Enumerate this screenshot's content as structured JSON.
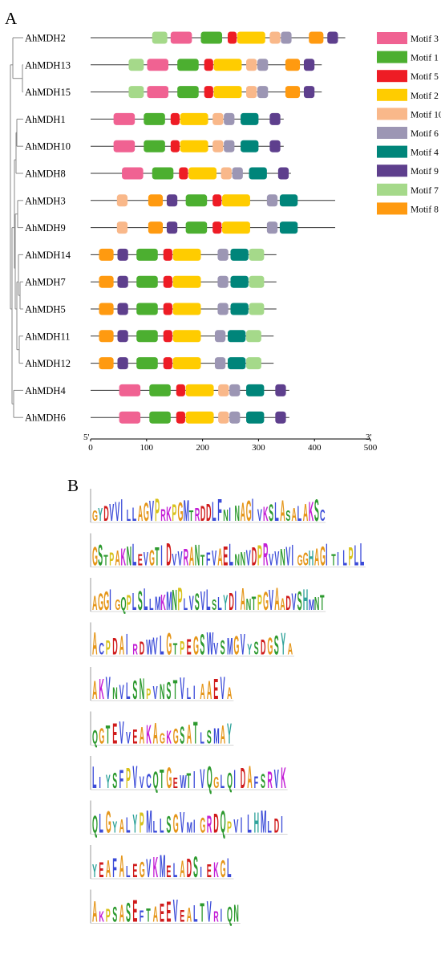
{
  "panels": {
    "a_label": "A",
    "b_label": "B"
  },
  "axis": {
    "end5": "5'",
    "end3": "3'",
    "ticks": [
      0,
      100,
      200,
      300,
      400,
      500
    ],
    "range": [
      0,
      500
    ]
  },
  "motif_legend": [
    {
      "id": 3,
      "name": "Motif 3",
      "color": "#f06292"
    },
    {
      "id": 1,
      "name": "Motif 1",
      "color": "#4caf30"
    },
    {
      "id": 5,
      "name": "Motif 5",
      "color": "#ee1c25"
    },
    {
      "id": 2,
      "name": "Motif 2",
      "color": "#ffcc00"
    },
    {
      "id": 10,
      "name": "Motif 10",
      "color": "#f9b88a"
    },
    {
      "id": 6,
      "name": "Motif 6",
      "color": "#9c96b4"
    },
    {
      "id": 4,
      "name": "Motif 4",
      "color": "#00857a"
    },
    {
      "id": 9,
      "name": "Motif 9",
      "color": "#5e3f8d"
    },
    {
      "id": 7,
      "name": "Motif 7",
      "color": "#a5d98a"
    },
    {
      "id": 8,
      "name": "Motif 8",
      "color": "#ff9a10"
    }
  ],
  "genes": [
    {
      "name": "AhMDH2",
      "length": 455,
      "motifs": [
        [
          7,
          110
        ],
        [
          3,
          143
        ],
        [
          1,
          197
        ],
        [
          5,
          245
        ],
        [
          2,
          262
        ],
        [
          10,
          320
        ],
        [
          6,
          340
        ],
        [
          8,
          390
        ],
        [
          9,
          423
        ]
      ]
    },
    {
      "name": "AhMDH13",
      "length": 413,
      "motifs": [
        [
          7,
          68
        ],
        [
          3,
          101
        ],
        [
          1,
          155
        ],
        [
          5,
          203
        ],
        [
          2,
          220
        ],
        [
          10,
          278
        ],
        [
          6,
          298
        ],
        [
          8,
          348
        ],
        [
          9,
          381
        ]
      ]
    },
    {
      "name": "AhMDH15",
      "length": 413,
      "motifs": [
        [
          7,
          68
        ],
        [
          3,
          101
        ],
        [
          1,
          155
        ],
        [
          5,
          203
        ],
        [
          2,
          220
        ],
        [
          10,
          278
        ],
        [
          6,
          298
        ],
        [
          8,
          348
        ],
        [
          9,
          381
        ]
      ]
    },
    {
      "name": "AhMDH1",
      "length": 345,
      "motifs": [
        [
          3,
          41
        ],
        [
          1,
          95
        ],
        [
          5,
          143
        ],
        [
          2,
          160
        ],
        [
          10,
          218
        ],
        [
          6,
          238
        ],
        [
          4,
          268
        ],
        [
          9,
          320
        ]
      ]
    },
    {
      "name": "AhMDH10",
      "length": 345,
      "motifs": [
        [
          3,
          41
        ],
        [
          1,
          95
        ],
        [
          5,
          143
        ],
        [
          2,
          160
        ],
        [
          10,
          218
        ],
        [
          6,
          238
        ],
        [
          4,
          268
        ],
        [
          9,
          320
        ]
      ]
    },
    {
      "name": "AhMDH8",
      "length": 358,
      "motifs": [
        [
          3,
          56
        ],
        [
          1,
          110
        ],
        [
          5,
          158
        ],
        [
          2,
          175
        ],
        [
          10,
          233
        ],
        [
          6,
          253
        ],
        [
          4,
          283
        ],
        [
          9,
          335
        ]
      ]
    },
    {
      "name": "AhMDH3",
      "length": 437,
      "motifs": [
        [
          10,
          47
        ],
        [
          8,
          103
        ],
        [
          9,
          136
        ],
        [
          1,
          170
        ],
        [
          5,
          218
        ],
        [
          2,
          235
        ],
        [
          6,
          315
        ],
        [
          4,
          338
        ]
      ]
    },
    {
      "name": "AhMDH9",
      "length": 437,
      "motifs": [
        [
          10,
          47
        ],
        [
          8,
          103
        ],
        [
          9,
          136
        ],
        [
          1,
          170
        ],
        [
          5,
          218
        ],
        [
          2,
          235
        ],
        [
          6,
          315
        ],
        [
          4,
          338
        ]
      ]
    },
    {
      "name": "AhMDH14",
      "length": 332,
      "motifs": [
        [
          8,
          15
        ],
        [
          9,
          48
        ],
        [
          1,
          82
        ],
        [
          5,
          130
        ],
        [
          2,
          147
        ],
        [
          6,
          227
        ],
        [
          4,
          250
        ],
        [
          7,
          283
        ]
      ]
    },
    {
      "name": "AhMDH7",
      "length": 332,
      "motifs": [
        [
          8,
          15
        ],
        [
          9,
          48
        ],
        [
          1,
          82
        ],
        [
          5,
          130
        ],
        [
          2,
          147
        ],
        [
          6,
          227
        ],
        [
          4,
          250
        ],
        [
          7,
          283
        ]
      ]
    },
    {
      "name": "AhMDH5",
      "length": 332,
      "motifs": [
        [
          8,
          15
        ],
        [
          9,
          48
        ],
        [
          1,
          82
        ],
        [
          5,
          130
        ],
        [
          2,
          147
        ],
        [
          6,
          227
        ],
        [
          4,
          250
        ],
        [
          7,
          283
        ]
      ]
    },
    {
      "name": "AhMDH11",
      "length": 327,
      "motifs": [
        [
          8,
          15
        ],
        [
          9,
          48
        ],
        [
          1,
          82
        ],
        [
          5,
          130
        ],
        [
          2,
          147
        ],
        [
          6,
          222
        ],
        [
          4,
          245
        ],
        [
          7,
          278
        ]
      ]
    },
    {
      "name": "AhMDH12",
      "length": 327,
      "motifs": [
        [
          8,
          15
        ],
        [
          9,
          48
        ],
        [
          1,
          82
        ],
        [
          5,
          130
        ],
        [
          2,
          147
        ],
        [
          6,
          222
        ],
        [
          4,
          245
        ],
        [
          7,
          278
        ]
      ]
    },
    {
      "name": "AhMDH4",
      "length": 355,
      "motifs": [
        [
          3,
          51
        ],
        [
          1,
          105
        ],
        [
          5,
          153
        ],
        [
          2,
          170
        ],
        [
          10,
          228
        ],
        [
          6,
          248
        ],
        [
          4,
          278
        ],
        [
          9,
          330
        ]
      ]
    },
    {
      "name": "AhMDH6",
      "length": 355,
      "motifs": [
        [
          3,
          51
        ],
        [
          1,
          105
        ],
        [
          5,
          153
        ],
        [
          2,
          170
        ],
        [
          10,
          228
        ],
        [
          6,
          248
        ],
        [
          4,
          278
        ],
        [
          9,
          330
        ]
      ]
    }
  ],
  "motif_sizes": {
    "3": 38,
    "1": 38,
    "5": 16,
    "2": 50,
    "10": 19,
    "6": 19,
    "4": 32,
    "9": 19,
    "7": 27,
    "8": 26
  },
  "logos": [
    {
      "motif": 3,
      "letters": "GYDVVILLAGVPRKPGMTRDDLFNINAGIVKSLASALAKSC"
    },
    {
      "motif": 1,
      "letters": "GSTPAKNLEVGTIDVVRANTFVAELNNVDPRVVNVIGGHAGITILPLL"
    },
    {
      "motif": 5,
      "letters": "AGGIGQPLSLLMKMNPLVSVLSLYDIANTPGVAADVSHMNT"
    },
    {
      "motif": 2,
      "letters": "ACPDAIRDWVLGTPEGSWVSMGVYSDGSYA"
    },
    {
      "motif": 10,
      "letters": "AKVNVLSNPVNSTVLIAAEVA"
    },
    {
      "motif": 6,
      "letters": "QGTEVVEAKAGKGSATLSMAY"
    },
    {
      "motif": 4,
      "letters": "LIYSFPVVCQTGEWTIVQGLQIDAFSRVK"
    },
    {
      "motif": 9,
      "letters": "QLGYALYPMLLSGVMIGRDQPVILHMLDI"
    },
    {
      "motif": 7,
      "letters": "YEAFALEGVKMELADSIEKGL"
    },
    {
      "motif": 8,
      "letters": "AKPSASEFTAEEVEALTVRIQN"
    }
  ]
}
